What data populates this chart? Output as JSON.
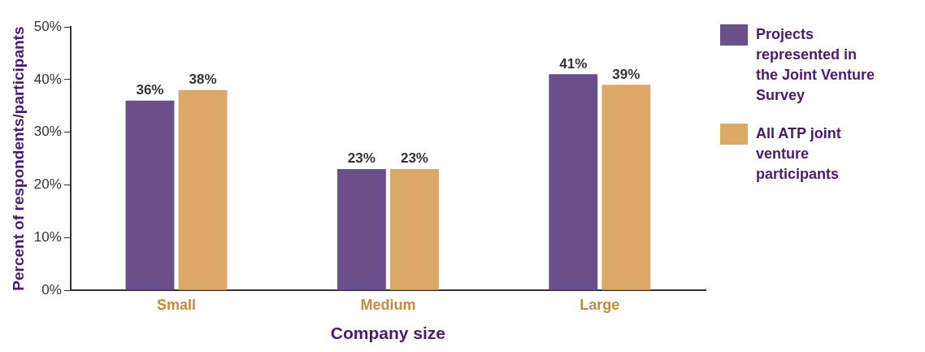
{
  "chart_data": {
    "type": "bar",
    "xlabel": "Company size",
    "ylabel": "Percent of respondents/participants",
    "categories": [
      "Small",
      "Medium",
      "Large"
    ],
    "series": [
      {
        "name": "Projects represented in the Joint Venture Survey",
        "color": "#6b4f8a",
        "values": [
          36,
          23,
          41
        ],
        "value_labels": [
          "36%",
          "23%",
          "41%"
        ]
      },
      {
        "name": "All ATP joint venture participants",
        "color": "#dba868",
        "values": [
          38,
          23,
          39
        ],
        "value_labels": [
          "38%",
          "23%",
          "39%"
        ]
      }
    ],
    "ylim": [
      0,
      50
    ],
    "yticks": [
      {
        "value": 0,
        "label": "0%"
      },
      {
        "value": 10,
        "label": "10%"
      },
      {
        "value": 20,
        "label": "20%"
      },
      {
        "value": 30,
        "label": "30%"
      },
      {
        "value": 40,
        "label": "40%"
      },
      {
        "value": 50,
        "label": "50%"
      }
    ],
    "grid": false,
    "legend": "right"
  }
}
